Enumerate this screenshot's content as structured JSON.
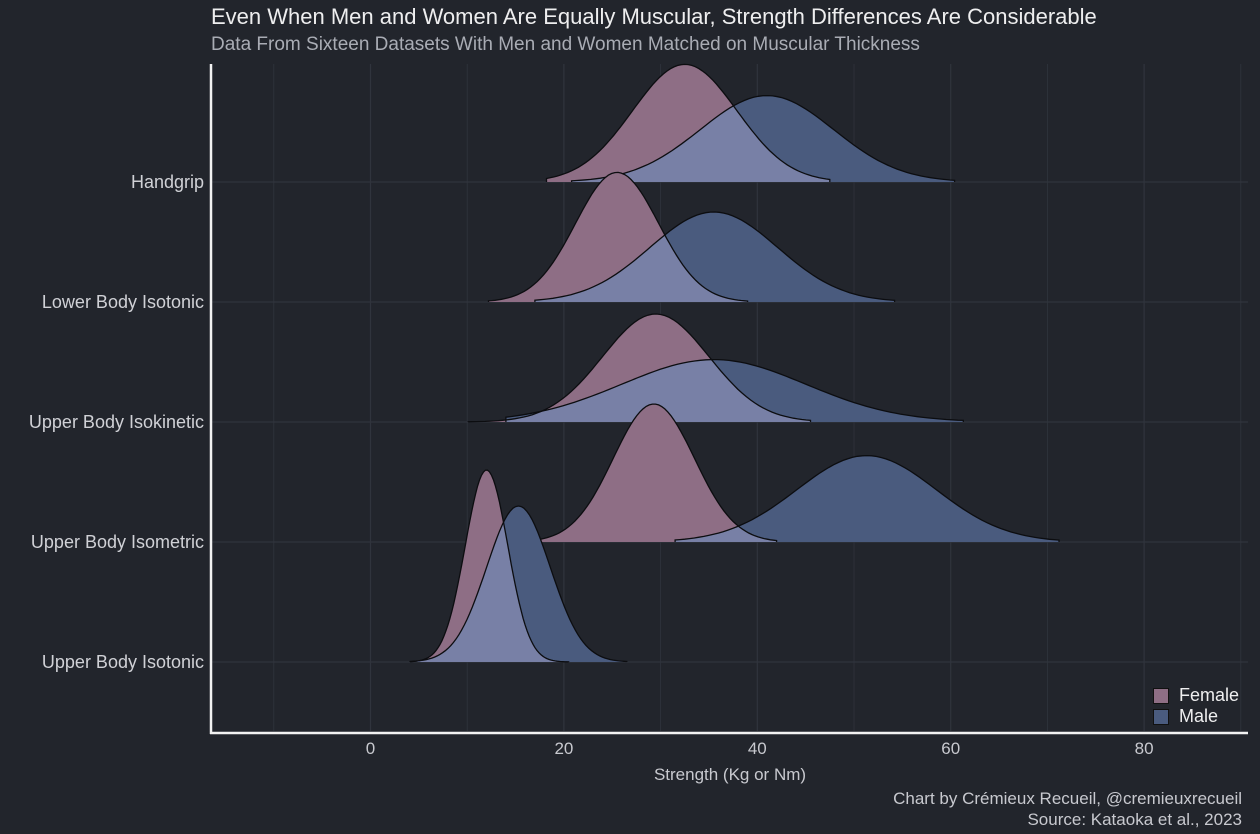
{
  "chart_data": {
    "type": "ridgeline-density",
    "title": "Even When Men and Women Are Equally Muscular, Strength Differences Are Considerable",
    "subtitle": "Data From Sixteen Datasets With Men and Women Matched on Muscular Thickness",
    "xlabel": "Strength (Kg or Nm)",
    "ylabel": "",
    "xlim": [
      -17,
      90
    ],
    "x_ticks": [
      0,
      20,
      40,
      60,
      80
    ],
    "grid": true,
    "legend": {
      "position": "bottom-right",
      "entries": [
        "Female",
        "Male"
      ]
    },
    "colors": {
      "Female": "#8e6e85",
      "Male": "#4a5b7e",
      "overlap": "#7880a6"
    },
    "categories": [
      "Upper Body Isotonic",
      "Upper Body Isometric",
      "Upper Body Isokinetic",
      "Lower Body Isotonic",
      "Handgrip"
    ],
    "series": [
      {
        "name": "Female",
        "distributions": [
          {
            "category": "Upper Body Isotonic",
            "mean": 12,
            "sd": 2.2,
            "min": 4.1,
            "max": 20.5,
            "peak_height": 1.6
          },
          {
            "category": "Upper Body Isometric",
            "mean": 29.3,
            "sd": 4.2,
            "min": 16.3,
            "max": 42,
            "peak_height": 1.15
          },
          {
            "category": "Upper Body Isokinetic",
            "mean": 29.5,
            "sd": 5.5,
            "min": 10.1,
            "max": 45.5,
            "peak_height": 0.9
          },
          {
            "category": "Lower Body Isotonic",
            "mean": 25.5,
            "sd": 4.3,
            "min": 12.2,
            "max": 39,
            "peak_height": 1.08
          },
          {
            "category": "Handgrip",
            "mean": 32.5,
            "sd": 5.4,
            "min": 18.2,
            "max": 47.5,
            "peak_height": 0.98
          }
        ]
      },
      {
        "name": "Male",
        "distributions": [
          {
            "category": "Upper Body Isotonic",
            "mean": 15.3,
            "sd": 3.3,
            "min": 4.1,
            "max": 26.5,
            "peak_height": 1.3
          },
          {
            "category": "Upper Body Isometric",
            "mean": 51.3,
            "sd": 7.2,
            "min": 31.5,
            "max": 71.2,
            "peak_height": 0.72
          },
          {
            "category": "Upper Body Isokinetic",
            "mean": 35.5,
            "sd": 9.5,
            "min": 14,
            "max": 61.3,
            "peak_height": 0.52
          },
          {
            "category": "Lower Body Isotonic",
            "mean": 35.5,
            "sd": 6.6,
            "min": 17,
            "max": 54.2,
            "peak_height": 0.75
          },
          {
            "category": "Handgrip",
            "mean": 41,
            "sd": 6.9,
            "min": 20.8,
            "max": 60.4,
            "peak_height": 0.72
          }
        ]
      }
    ]
  },
  "caption": {
    "line1": "Chart by Crémieux Recueil, @cremieuxrecueil",
    "line2": "Source: Kataoka et al., 2023"
  }
}
